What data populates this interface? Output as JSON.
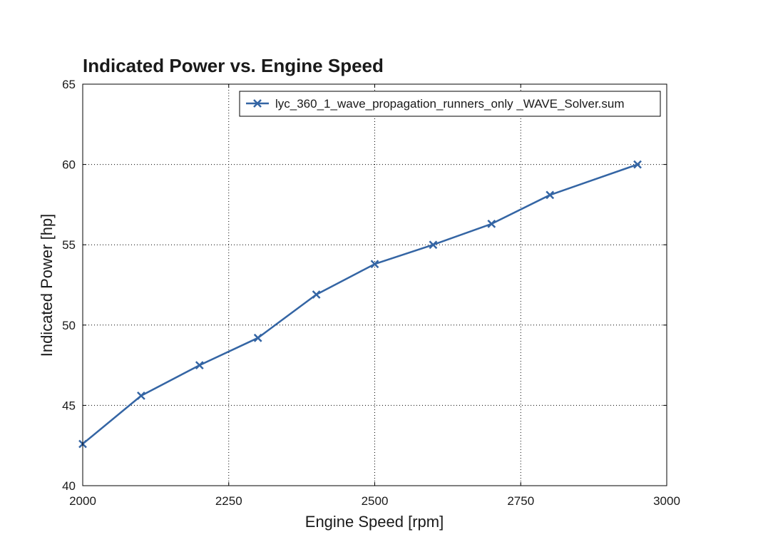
{
  "chart_data": {
    "type": "line",
    "title": "Indicated Power vs. Engine Speed",
    "xlabel": "Engine Speed [rpm]",
    "ylabel": "Indicated Power [hp]",
    "xlim": [
      2000,
      3000
    ],
    "ylim": [
      40,
      65
    ],
    "xticks": [
      2000,
      2250,
      2500,
      2750,
      3000
    ],
    "yticks": [
      40,
      45,
      50,
      55,
      60,
      65
    ],
    "grid": true,
    "legend_position": "top-right",
    "series": [
      {
        "name": "lyc_360_1_wave_propagation_runners_only _WAVE_Solver.sum",
        "color": "#3465a4",
        "marker": "x",
        "x": [
          2000,
          2100,
          2200,
          2300,
          2400,
          2500,
          2600,
          2700,
          2800,
          2950
        ],
        "y": [
          42.6,
          45.6,
          47.5,
          49.2,
          51.9,
          53.8,
          55.0,
          56.3,
          58.1,
          60.0
        ]
      }
    ]
  }
}
